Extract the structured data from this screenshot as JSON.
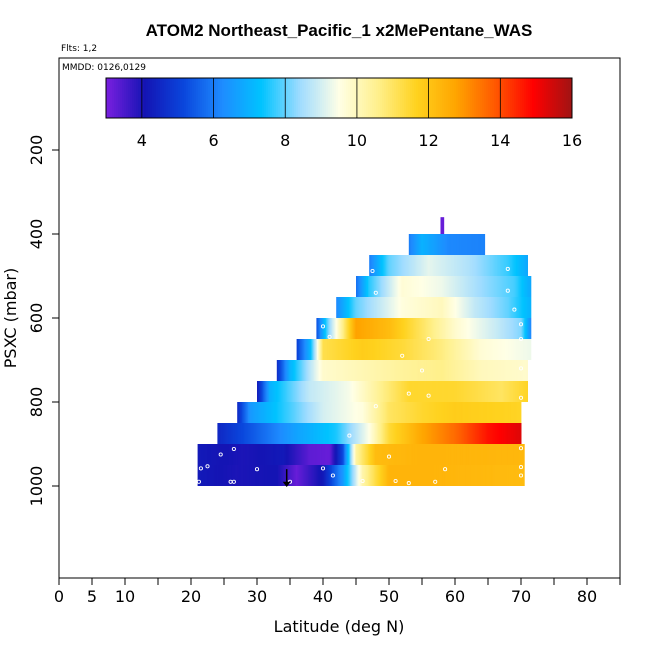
{
  "chart_data": {
    "type": "heatmap",
    "title": "ATOM2 Northeast_Pacific_1 x2MePentane_WAS",
    "flights_label": "Flts: 1,2",
    "dates_label": "MMDD: 0126,0129",
    "xlabel": "Latitude (deg N)",
    "ylabel": "PSXC (mbar)",
    "xlim": [
      0,
      85
    ],
    "ylim": [
      1000,
      0
    ],
    "x_ticks": [
      "0",
      "5",
      "10",
      "20",
      "30",
      "40",
      "50",
      "60",
      "70",
      "80"
    ],
    "y_ticks": [
      "200",
      "400",
      "600",
      "800",
      "1000"
    ],
    "colorbar": {
      "range": [
        3,
        16
      ],
      "ticks": [
        "4",
        "6",
        "8",
        "10",
        "12",
        "14",
        "16"
      ],
      "colors": [
        "#7a1fe0",
        "#1414b4",
        "#0a46dc",
        "#1e8cff",
        "#00c3ff",
        "#a0dcff",
        "#ffffe6",
        "#fff08c",
        "#ffd21e",
        "#ffa500",
        "#ff5a00",
        "#ff0000",
        "#a01414"
      ]
    },
    "bands": [
      {
        "p_top": 950,
        "p_bot": 1000,
        "lat_min": 21,
        "lat_max": 70.5,
        "stops": [
          [
            21,
            4.2
          ],
          [
            27,
            4.0
          ],
          [
            33,
            4.1
          ],
          [
            36,
            3.2
          ],
          [
            40,
            4.2
          ],
          [
            43,
            6.5
          ],
          [
            46,
            10.2
          ],
          [
            50,
            12.4
          ],
          [
            55,
            12.4
          ],
          [
            70.5,
            12.2
          ]
        ]
      },
      {
        "p_top": 900,
        "p_bot": 950,
        "lat_min": 21,
        "lat_max": 70.5,
        "stops": [
          [
            21,
            4.2
          ],
          [
            28,
            4.0
          ],
          [
            34,
            4.2
          ],
          [
            38,
            3.3
          ],
          [
            41,
            3.2
          ],
          [
            43,
            5.2
          ],
          [
            45,
            10.3
          ],
          [
            48,
            12.2
          ],
          [
            55,
            12.4
          ],
          [
            70.5,
            12.3
          ]
        ]
      },
      {
        "p_top": 850,
        "p_bot": 900,
        "lat_min": 24,
        "lat_max": 70,
        "stops": [
          [
            24,
            4.5
          ],
          [
            29,
            5.4
          ],
          [
            36,
            6.7
          ],
          [
            42,
            7.5
          ],
          [
            47,
            9.5
          ],
          [
            50,
            11.4
          ],
          [
            55,
            12.7
          ],
          [
            60,
            13.6
          ],
          [
            65,
            14.7
          ],
          [
            70,
            15.3
          ]
        ]
      },
      {
        "p_top": 800,
        "p_bot": 850,
        "lat_min": 27,
        "lat_max": 70,
        "stops": [
          [
            27,
            4.5
          ],
          [
            29,
            6.5
          ],
          [
            35,
            7.8
          ],
          [
            40,
            9.0
          ],
          [
            46,
            9.6
          ],
          [
            50,
            11.0
          ],
          [
            55,
            11.5
          ],
          [
            60,
            11.8
          ],
          [
            70,
            11.6
          ]
        ]
      },
      {
        "p_top": 750,
        "p_bot": 800,
        "lat_min": 30,
        "lat_max": 71,
        "stops": [
          [
            30,
            4.2
          ],
          [
            32,
            7.0
          ],
          [
            38,
            8.8
          ],
          [
            44,
            9.4
          ],
          [
            49,
            10.6
          ],
          [
            53,
            11.5
          ],
          [
            60,
            11.5
          ],
          [
            67,
            11.0
          ],
          [
            71,
            11.6
          ]
        ]
      },
      {
        "p_top": 700,
        "p_bot": 750,
        "lat_min": 33,
        "lat_max": 71,
        "stops": [
          [
            33,
            4.6
          ],
          [
            35,
            7.0
          ],
          [
            40,
            9.8
          ],
          [
            46,
            10.1
          ],
          [
            52,
            10.4
          ],
          [
            58,
            10.6
          ],
          [
            64,
            10.0
          ],
          [
            71,
            9.8
          ]
        ]
      },
      {
        "p_top": 650,
        "p_bot": 700,
        "lat_min": 36,
        "lat_max": 71.5,
        "stops": [
          [
            36,
            5.0
          ],
          [
            38,
            7.0
          ],
          [
            40,
            11.2
          ],
          [
            46,
            11.8
          ],
          [
            52,
            11.4
          ],
          [
            58,
            10.7
          ],
          [
            64,
            9.7
          ],
          [
            71.5,
            9.3
          ]
        ]
      },
      {
        "p_top": 600,
        "p_bot": 650,
        "lat_min": 39,
        "lat_max": 71.5,
        "stops": [
          [
            39,
            5.3
          ],
          [
            41,
            8.4
          ],
          [
            45,
            12.8
          ],
          [
            50,
            12.2
          ],
          [
            55,
            11.0
          ],
          [
            60,
            9.8
          ],
          [
            66,
            8.9
          ],
          [
            70,
            8.2
          ],
          [
            71.5,
            6.2
          ]
        ]
      },
      {
        "p_top": 550,
        "p_bot": 600,
        "lat_min": 42,
        "lat_max": 71.5,
        "stops": [
          [
            42,
            6.2
          ],
          [
            45,
            8.0
          ],
          [
            52,
            9.6
          ],
          [
            58,
            10.0
          ],
          [
            63,
            8.8
          ],
          [
            68,
            8.0
          ],
          [
            71.5,
            7.0
          ]
        ]
      },
      {
        "p_top": 500,
        "p_bot": 550,
        "lat_min": 45,
        "lat_max": 71.5,
        "stops": [
          [
            45,
            5.8
          ],
          [
            47,
            7.6
          ],
          [
            52,
            9.7
          ],
          [
            58,
            9.3
          ],
          [
            64,
            8.4
          ],
          [
            69,
            7.8
          ],
          [
            71.5,
            6.8
          ]
        ]
      },
      {
        "p_top": 450,
        "p_bot": 500,
        "lat_min": 47,
        "lat_max": 71,
        "stops": [
          [
            47,
            6.0
          ],
          [
            50,
            8.0
          ],
          [
            56,
            9.2
          ],
          [
            62,
            8.6
          ],
          [
            68,
            7.7
          ],
          [
            71,
            6.8
          ]
        ]
      },
      {
        "p_top": 400,
        "p_bot": 450,
        "lat_min": 53,
        "lat_max": 64.5,
        "stops": [
          [
            53,
            6.0
          ],
          [
            55,
            7.0
          ],
          [
            59,
            6.2
          ],
          [
            64.5,
            6.1
          ]
        ]
      },
      {
        "p_top": 360,
        "p_bot": 400,
        "lat_min": 57.8,
        "lat_max": 58.3,
        "stops": [
          [
            57.8,
            3.2
          ],
          [
            58.3,
            3.2
          ]
        ]
      }
    ],
    "sample_points": [
      [
        21.2,
        990
      ],
      [
        21.5,
        958
      ],
      [
        22.5,
        953
      ],
      [
        26,
        990
      ],
      [
        26.5,
        990
      ],
      [
        24.5,
        925
      ],
      [
        26.5,
        912
      ],
      [
        30,
        960
      ],
      [
        35,
        990
      ],
      [
        40,
        958
      ],
      [
        41.5,
        975
      ],
      [
        46,
        988
      ],
      [
        51,
        988
      ],
      [
        53,
        993
      ],
      [
        57,
        990
      ],
      [
        58.5,
        960
      ],
      [
        70,
        955
      ],
      [
        70,
        910
      ],
      [
        70,
        975
      ],
      [
        50,
        930
      ],
      [
        44,
        880
      ],
      [
        48,
        810
      ],
      [
        53,
        780
      ],
      [
        56,
        785
      ],
      [
        70,
        790
      ],
      [
        70,
        720
      ],
      [
        52,
        690
      ],
      [
        56,
        650
      ],
      [
        70,
        650
      ],
      [
        70,
        615
      ],
      [
        69,
        580
      ],
      [
        40,
        620
      ],
      [
        48,
        540
      ],
      [
        68,
        535
      ],
      [
        68,
        483
      ],
      [
        47.5,
        488
      ],
      [
        41,
        645
      ],
      [
        55,
        725
      ]
    ],
    "marker_lat": 34.5
  }
}
